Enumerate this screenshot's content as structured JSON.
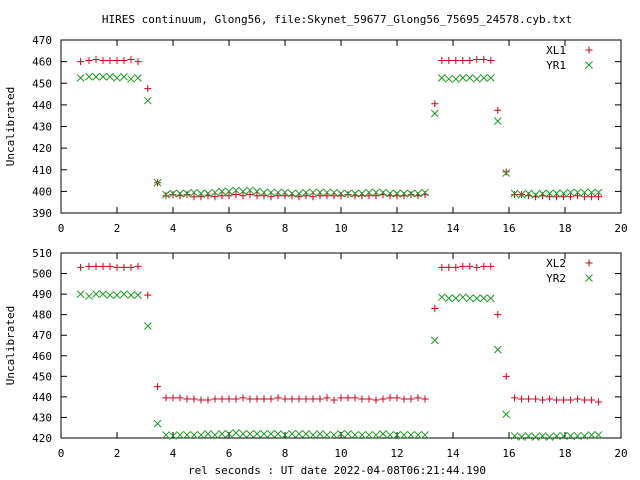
{
  "figure": {
    "title": "HIRES continuum, Glong56, file:Skynet_59677_Glong56_75695_24578.cyb.txt",
    "xlabel": "rel seconds : UT date 2022-04-08T06:21:44.190"
  },
  "colors": {
    "series1": "#d0001c",
    "series2": "#1b9a22"
  },
  "chart_data": [
    {
      "type": "scatter",
      "title": "HIRES continuum, Glong56, file:Skynet_59677_Glong56_75695_24578.cyb.txt",
      "ylabel": "Uncalibrated",
      "xlabel": "",
      "xlim": [
        0,
        20
      ],
      "ylim": [
        390,
        470
      ],
      "xticks": [
        0,
        2,
        4,
        6,
        8,
        10,
        12,
        14,
        16,
        18,
        20
      ],
      "yticks": [
        390,
        400,
        410,
        420,
        430,
        440,
        450,
        460,
        470
      ],
      "legend_position": "top-right",
      "grid": false,
      "x": [
        0.7,
        1.0,
        1.25,
        1.5,
        1.75,
        2.0,
        2.25,
        2.5,
        2.75,
        3.1,
        3.45,
        3.75,
        4.0,
        4.25,
        4.5,
        4.75,
        5.0,
        5.25,
        5.5,
        5.75,
        6.0,
        6.25,
        6.5,
        6.75,
        7.0,
        7.25,
        7.5,
        7.75,
        8.0,
        8.25,
        8.5,
        8.75,
        9.0,
        9.25,
        9.5,
        9.75,
        10.0,
        10.25,
        10.5,
        10.75,
        11.0,
        11.25,
        11.5,
        11.75,
        12.0,
        12.25,
        12.5,
        12.75,
        13.0,
        13.35,
        13.6,
        13.85,
        14.1,
        14.35,
        14.6,
        14.85,
        15.1,
        15.35,
        15.6,
        15.9,
        16.2,
        16.45,
        16.7,
        16.95,
        17.2,
        17.45,
        17.7,
        17.95,
        18.2,
        18.45,
        18.7,
        18.95,
        19.2
      ],
      "series": [
        {
          "name": "XL1",
          "marker": "plus",
          "values": [
            460,
            460.5,
            461,
            460.5,
            460.5,
            460.5,
            460.5,
            461,
            460,
            447.5,
            404,
            398,
            398.5,
            398,
            398.5,
            397.5,
            397.5,
            398,
            397.5,
            398,
            398,
            398.5,
            398,
            398.5,
            398,
            398,
            397.5,
            398,
            398,
            398,
            397.5,
            398,
            397.5,
            398,
            398,
            398,
            398,
            398.5,
            398,
            398,
            398,
            398,
            398.5,
            398,
            398,
            398,
            398.5,
            398,
            398.5,
            440.5,
            460.5,
            460.5,
            460.5,
            460.5,
            460.5,
            461,
            461,
            460.5,
            437.5,
            409,
            398.5,
            398.5,
            398,
            397.5,
            398,
            397.5,
            397.5,
            397.5,
            397.5,
            398,
            397.5,
            397.5,
            397.5
          ]
        },
        {
          "name": "YR1",
          "marker": "cross",
          "values": [
            452.5,
            453,
            453,
            453,
            453,
            452.5,
            453,
            452,
            452.5,
            442,
            404,
            398.5,
            399,
            399,
            399,
            399.5,
            399,
            399,
            399.5,
            400,
            400,
            400.5,
            400,
            400.5,
            400,
            399.5,
            399.5,
            399.5,
            399.5,
            399,
            399,
            399.5,
            399.5,
            399.5,
            399.5,
            399.5,
            399,
            399,
            399,
            399,
            399.5,
            399.5,
            399.5,
            399,
            399,
            399,
            399,
            399,
            399.5,
            436,
            452.5,
            452,
            452,
            452.5,
            452.5,
            452,
            452.5,
            452.5,
            432.5,
            408.5,
            399,
            398.5,
            399,
            398.5,
            399,
            399,
            399,
            399,
            399.5,
            399.5,
            399.5,
            399.5,
            399.5
          ]
        }
      ]
    },
    {
      "type": "scatter",
      "title": "",
      "ylabel": "Uncalibrated",
      "xlabel": "rel seconds : UT date 2022-04-08T06:21:44.190",
      "xlim": [
        0,
        20
      ],
      "ylim": [
        420,
        510
      ],
      "xticks": [
        0,
        2,
        4,
        6,
        8,
        10,
        12,
        14,
        16,
        18,
        20
      ],
      "yticks": [
        420,
        430,
        440,
        450,
        460,
        470,
        480,
        490,
        500,
        510
      ],
      "legend_position": "top-right",
      "grid": false,
      "x": [
        0.7,
        1.0,
        1.25,
        1.5,
        1.75,
        2.0,
        2.25,
        2.5,
        2.75,
        3.1,
        3.45,
        3.75,
        4.0,
        4.25,
        4.5,
        4.75,
        5.0,
        5.25,
        5.5,
        5.75,
        6.0,
        6.25,
        6.5,
        6.75,
        7.0,
        7.25,
        7.5,
        7.75,
        8.0,
        8.25,
        8.5,
        8.75,
        9.0,
        9.25,
        9.5,
        9.75,
        10.0,
        10.25,
        10.5,
        10.75,
        11.0,
        11.25,
        11.5,
        11.75,
        12.0,
        12.25,
        12.5,
        12.75,
        13.0,
        13.35,
        13.6,
        13.85,
        14.1,
        14.35,
        14.6,
        14.85,
        15.1,
        15.35,
        15.6,
        15.9,
        16.2,
        16.45,
        16.7,
        16.95,
        17.2,
        17.45,
        17.7,
        17.95,
        18.2,
        18.45,
        18.7,
        18.95,
        19.2
      ],
      "series": [
        {
          "name": "XL2",
          "marker": "plus",
          "values": [
            503,
            503.5,
            503.5,
            503.5,
            503.5,
            503,
            503,
            503,
            503.5,
            489.5,
            445,
            439.5,
            439.5,
            439.5,
            439,
            439,
            438.5,
            438.5,
            439,
            439,
            439,
            439,
            439.5,
            439,
            439,
            439,
            439,
            439.5,
            439,
            439,
            439,
            439,
            439,
            439,
            439.5,
            438.5,
            439.5,
            439.5,
            439.5,
            439,
            439,
            438.5,
            439,
            439.5,
            439.5,
            439,
            439,
            439.5,
            439,
            483,
            503,
            503,
            503,
            503.5,
            503.5,
            503,
            503.5,
            503.5,
            480,
            450,
            439.5,
            439,
            439,
            439,
            438.5,
            439,
            438.5,
            438.5,
            438.5,
            439,
            438.5,
            438.5,
            437.5
          ]
        },
        {
          "name": "YR2",
          "marker": "cross",
          "values": [
            490,
            489,
            490,
            490,
            489.5,
            489.5,
            490,
            489.5,
            489.5,
            474.5,
            427,
            421.5,
            421,
            421.5,
            421.5,
            421.5,
            421.5,
            422,
            421.5,
            422,
            422,
            422.5,
            422,
            422,
            422,
            422,
            422,
            422,
            421.5,
            422,
            422,
            422,
            421.5,
            422,
            421.5,
            421.5,
            422,
            422,
            421.5,
            421.5,
            421.5,
            421.5,
            422,
            421.5,
            421.5,
            421.5,
            421.5,
            421.5,
            421.5,
            467.5,
            488.5,
            488,
            488,
            488.5,
            488,
            488,
            488,
            488,
            463,
            431.5,
            421,
            420.5,
            421,
            420.5,
            421,
            420.5,
            421,
            421,
            421,
            421,
            421,
            421.5,
            421.5
          ]
        }
      ]
    }
  ]
}
